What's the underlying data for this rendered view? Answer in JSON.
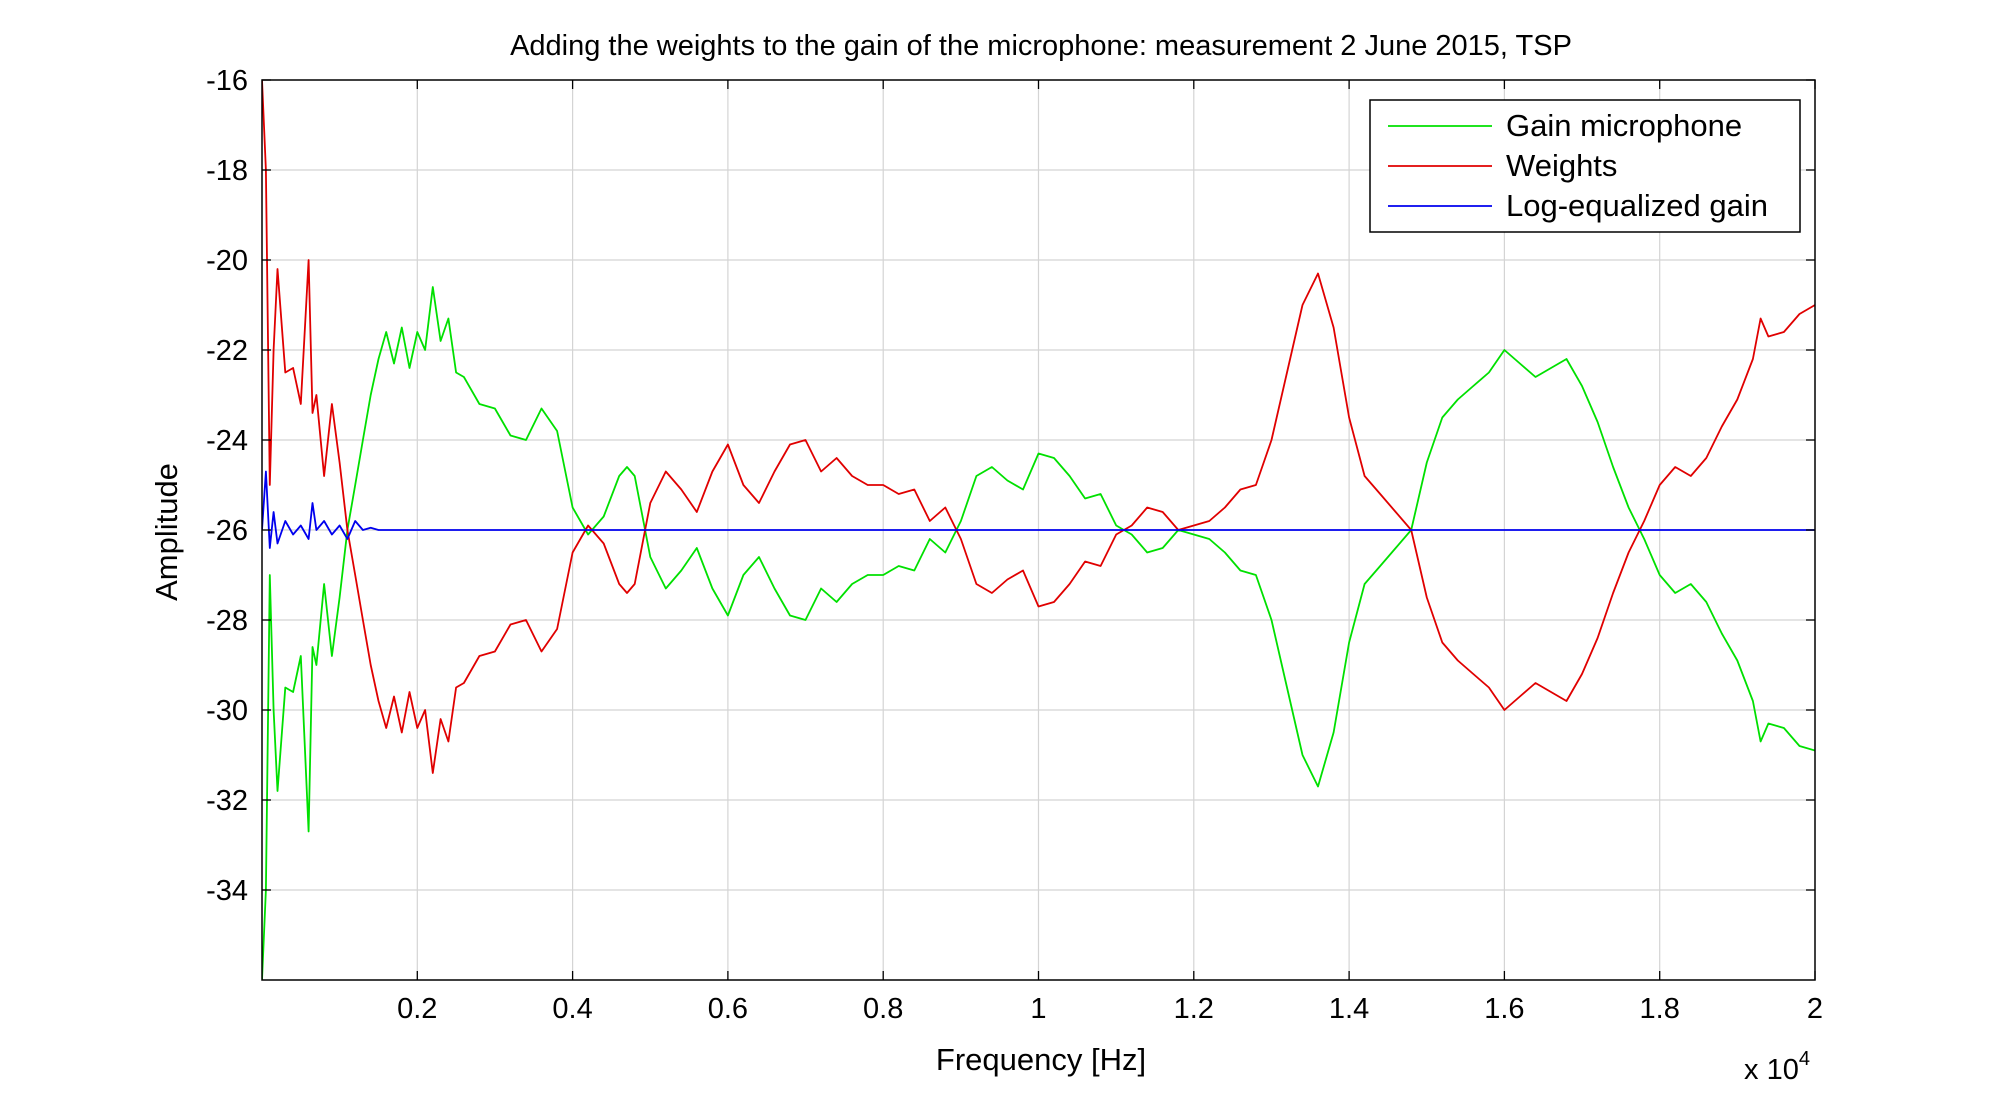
{
  "chart_data": {
    "type": "line",
    "title": "Adding the weights to the gain of the microphone: measurement 2 June 2015, TSP",
    "xlabel": "Frequency [Hz]",
    "ylabel": "Amplitude",
    "x_exponent_label": "x 10",
    "x_exponent_power": "4",
    "xlim": [
      0.0,
      2.0
    ],
    "ylim": [
      -36,
      -16
    ],
    "xticks": [
      0.2,
      0.4,
      0.6,
      0.8,
      1.0,
      1.2,
      1.4,
      1.6,
      1.8,
      2.0
    ],
    "xtick_labels": [
      "0.2",
      "0.4",
      "0.6",
      "0.8",
      "1",
      "1.2",
      "1.4",
      "1.6",
      "1.8",
      "2"
    ],
    "yticks": [
      -16,
      -18,
      -20,
      -22,
      -24,
      -26,
      -28,
      -30,
      -32,
      -34
    ],
    "ytick_labels": [
      "-16",
      "-18",
      "-20",
      "-22",
      "-24",
      "-26",
      "-28",
      "-30",
      "-32",
      "-34"
    ],
    "grid": true,
    "legend_position": "top-right",
    "series": [
      {
        "name": "Gain microphone",
        "color": "#00e000",
        "x": [
          0.0,
          0.005,
          0.01,
          0.015,
          0.02,
          0.03,
          0.04,
          0.05,
          0.06,
          0.065,
          0.07,
          0.08,
          0.09,
          0.1,
          0.11,
          0.12,
          0.13,
          0.14,
          0.15,
          0.16,
          0.17,
          0.18,
          0.19,
          0.2,
          0.21,
          0.22,
          0.23,
          0.24,
          0.25,
          0.26,
          0.28,
          0.3,
          0.32,
          0.34,
          0.36,
          0.38,
          0.4,
          0.42,
          0.44,
          0.46,
          0.47,
          0.48,
          0.5,
          0.52,
          0.54,
          0.56,
          0.58,
          0.6,
          0.62,
          0.64,
          0.66,
          0.68,
          0.7,
          0.72,
          0.74,
          0.76,
          0.78,
          0.8,
          0.82,
          0.84,
          0.86,
          0.88,
          0.9,
          0.92,
          0.94,
          0.96,
          0.98,
          1.0,
          1.02,
          1.04,
          1.06,
          1.08,
          1.1,
          1.12,
          1.14,
          1.16,
          1.18,
          1.2,
          1.22,
          1.24,
          1.26,
          1.28,
          1.3,
          1.32,
          1.34,
          1.36,
          1.38,
          1.4,
          1.42,
          1.44,
          1.46,
          1.48,
          1.5,
          1.52,
          1.54,
          1.56,
          1.58,
          1.6,
          1.62,
          1.64,
          1.66,
          1.68,
          1.7,
          1.72,
          1.74,
          1.76,
          1.78,
          1.8,
          1.82,
          1.84,
          1.86,
          1.88,
          1.9,
          1.92,
          1.93,
          1.94,
          1.96,
          1.98,
          2.0
        ],
        "y": [
          -36.0,
          -34.0,
          -27.0,
          -30.0,
          -31.8,
          -29.5,
          -29.6,
          -28.8,
          -32.7,
          -28.6,
          -29.0,
          -27.2,
          -28.8,
          -27.5,
          -26.0,
          -25.0,
          -24.0,
          -23.0,
          -22.2,
          -21.6,
          -22.3,
          -21.5,
          -22.4,
          -21.6,
          -22.0,
          -20.6,
          -21.8,
          -21.3,
          -22.5,
          -22.6,
          -23.2,
          -23.3,
          -23.9,
          -24.0,
          -23.3,
          -23.8,
          -25.5,
          -26.1,
          -25.7,
          -24.8,
          -24.6,
          -24.8,
          -26.6,
          -27.3,
          -26.9,
          -26.4,
          -27.3,
          -27.9,
          -27.0,
          -26.6,
          -27.3,
          -27.9,
          -28.0,
          -27.3,
          -27.6,
          -27.2,
          -27.0,
          -27.0,
          -26.8,
          -26.9,
          -26.2,
          -26.5,
          -25.8,
          -24.8,
          -24.6,
          -24.9,
          -25.1,
          -24.3,
          -24.4,
          -24.8,
          -25.3,
          -25.2,
          -25.9,
          -26.1,
          -26.5,
          -26.4,
          -26.0,
          -26.1,
          -26.2,
          -26.5,
          -26.9,
          -27.0,
          -28.0,
          -29.5,
          -31.0,
          -31.7,
          -30.5,
          -28.5,
          -27.2,
          -26.8,
          -26.4,
          -26.0,
          -24.5,
          -23.5,
          -23.1,
          -22.8,
          -22.5,
          -22.0,
          -22.3,
          -22.6,
          -22.4,
          -22.2,
          -22.8,
          -23.6,
          -24.6,
          -25.5,
          -26.2,
          -27.0,
          -27.4,
          -27.2,
          -27.6,
          -28.3,
          -28.9,
          -29.8,
          -30.7,
          -30.3,
          -30.4,
          -30.8,
          -30.9
        ]
      },
      {
        "name": "Weights",
        "color": "#e00000",
        "x": [
          0.0,
          0.005,
          0.01,
          0.015,
          0.02,
          0.03,
          0.04,
          0.05,
          0.06,
          0.065,
          0.07,
          0.08,
          0.09,
          0.1,
          0.11,
          0.12,
          0.13,
          0.14,
          0.15,
          0.16,
          0.17,
          0.18,
          0.19,
          0.2,
          0.21,
          0.22,
          0.23,
          0.24,
          0.25,
          0.26,
          0.28,
          0.3,
          0.32,
          0.34,
          0.36,
          0.38,
          0.4,
          0.42,
          0.44,
          0.46,
          0.47,
          0.48,
          0.5,
          0.52,
          0.54,
          0.56,
          0.58,
          0.6,
          0.62,
          0.64,
          0.66,
          0.68,
          0.7,
          0.72,
          0.74,
          0.76,
          0.78,
          0.8,
          0.82,
          0.84,
          0.86,
          0.88,
          0.9,
          0.92,
          0.94,
          0.96,
          0.98,
          1.0,
          1.02,
          1.04,
          1.06,
          1.08,
          1.1,
          1.12,
          1.14,
          1.16,
          1.18,
          1.2,
          1.22,
          1.24,
          1.26,
          1.28,
          1.3,
          1.32,
          1.34,
          1.36,
          1.38,
          1.4,
          1.42,
          1.44,
          1.46,
          1.48,
          1.5,
          1.52,
          1.54,
          1.56,
          1.58,
          1.6,
          1.62,
          1.64,
          1.66,
          1.68,
          1.7,
          1.72,
          1.74,
          1.76,
          1.78,
          1.8,
          1.82,
          1.84,
          1.86,
          1.88,
          1.9,
          1.92,
          1.93,
          1.94,
          1.96,
          1.98,
          2.0
        ],
        "y": [
          -16.0,
          -18.0,
          -25.0,
          -22.0,
          -20.2,
          -22.5,
          -22.4,
          -23.2,
          -20.0,
          -23.4,
          -23.0,
          -24.8,
          -23.2,
          -24.5,
          -26.0,
          -27.0,
          -28.0,
          -29.0,
          -29.8,
          -30.4,
          -29.7,
          -30.5,
          -29.6,
          -30.4,
          -30.0,
          -31.4,
          -30.2,
          -30.7,
          -29.5,
          -29.4,
          -28.8,
          -28.7,
          -28.1,
          -28.0,
          -28.7,
          -28.2,
          -26.5,
          -25.9,
          -26.3,
          -27.2,
          -27.4,
          -27.2,
          -25.4,
          -24.7,
          -25.1,
          -25.6,
          -24.7,
          -24.1,
          -25.0,
          -25.4,
          -24.7,
          -24.1,
          -24.0,
          -24.7,
          -24.4,
          -24.8,
          -25.0,
          -25.0,
          -25.2,
          -25.1,
          -25.8,
          -25.5,
          -26.2,
          -27.2,
          -27.4,
          -27.1,
          -26.9,
          -27.7,
          -27.6,
          -27.2,
          -26.7,
          -26.8,
          -26.1,
          -25.9,
          -25.5,
          -25.6,
          -26.0,
          -25.9,
          -25.8,
          -25.5,
          -25.1,
          -25.0,
          -24.0,
          -22.5,
          -21.0,
          -20.3,
          -21.5,
          -23.5,
          -24.8,
          -25.2,
          -25.6,
          -26.0,
          -27.5,
          -28.5,
          -28.9,
          -29.2,
          -29.5,
          -30.0,
          -29.7,
          -29.4,
          -29.6,
          -29.8,
          -29.2,
          -28.4,
          -27.4,
          -26.5,
          -25.8,
          -25.0,
          -24.6,
          -24.8,
          -24.4,
          -23.7,
          -23.1,
          -22.2,
          -21.3,
          -21.7,
          -21.6,
          -21.2,
          -21.0
        ]
      },
      {
        "name": "Log-equalized gain",
        "color": "#0000ee",
        "x": [
          0.0,
          0.005,
          0.01,
          0.015,
          0.02,
          0.03,
          0.04,
          0.05,
          0.06,
          0.065,
          0.07,
          0.08,
          0.09,
          0.1,
          0.11,
          0.12,
          0.13,
          0.14,
          0.15,
          0.2,
          0.4,
          0.6,
          0.8,
          1.0,
          1.2,
          1.4,
          1.6,
          1.8,
          2.0
        ],
        "y": [
          -26.0,
          -24.7,
          -26.4,
          -25.6,
          -26.3,
          -25.8,
          -26.1,
          -25.9,
          -26.2,
          -25.4,
          -26.0,
          -25.8,
          -26.1,
          -25.9,
          -26.2,
          -25.8,
          -26.0,
          -25.95,
          -26.0,
          -26.0,
          -26.0,
          -26.0,
          -26.0,
          -26.0,
          -26.0,
          -26.0,
          -26.0,
          -26.0,
          -26.0
        ]
      }
    ]
  }
}
